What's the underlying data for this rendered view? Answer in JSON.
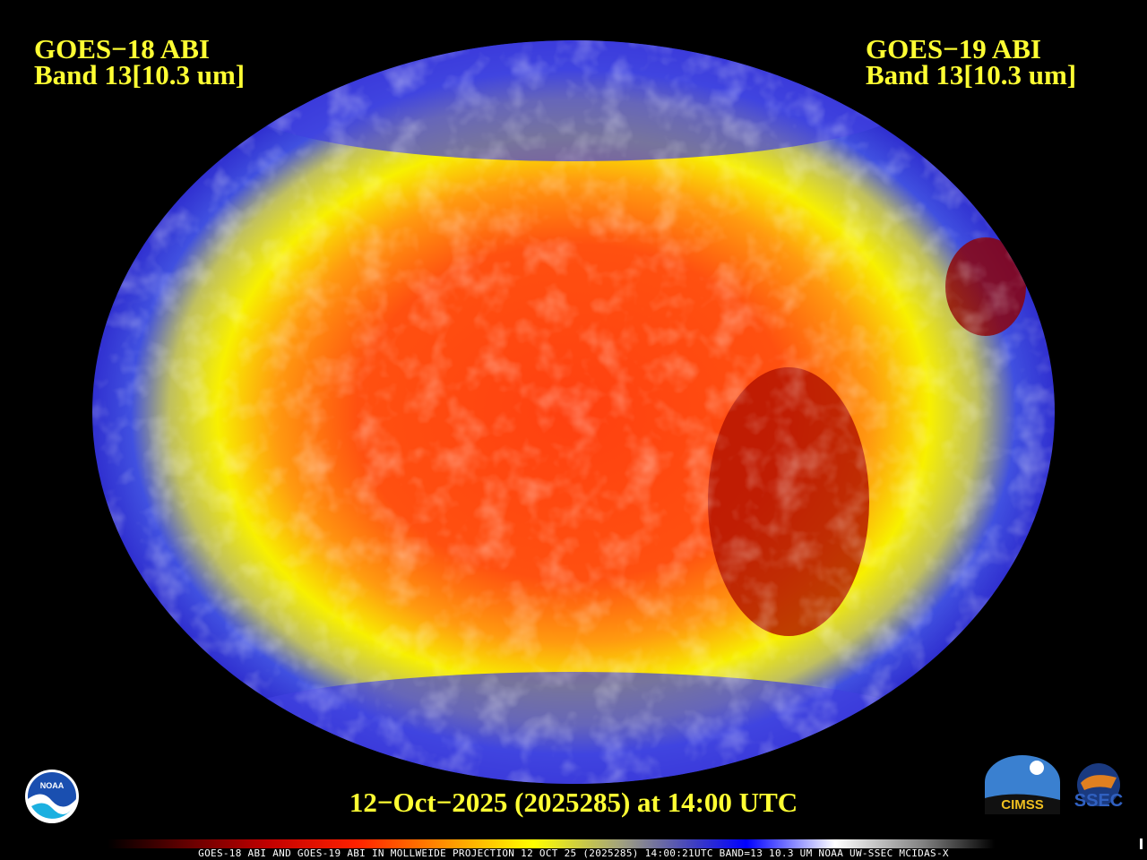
{
  "header": {
    "left": {
      "line1": "GOES−18 ABI",
      "line2": "Band 13[10.3 um]"
    },
    "right": {
      "line1": "GOES−19 ABI",
      "line2": "Band 13[10.3 um]"
    }
  },
  "date_label": "12−Oct−2025 (2025285) at 14:00 UTC",
  "caption": "GOES-18 ABI AND GOES-19 ABI IN MOLLWEIDE PROJECTION 12 OCT 25 (2025285) 14:00:21UTC BAND=13 10.3 UM NOAA UW-SSEC MCIDAS-X",
  "map": {
    "projection": "Mollweide",
    "band": "13",
    "wavelength": "10.3 um"
  },
  "logos": {
    "noaa": "NOAA",
    "cimss": "CIMSS",
    "ssec": "SSEC"
  },
  "colors": {
    "title": "#ffff33",
    "background": "#000000",
    "warm": "#ff3000",
    "cold": "#2020ff"
  }
}
